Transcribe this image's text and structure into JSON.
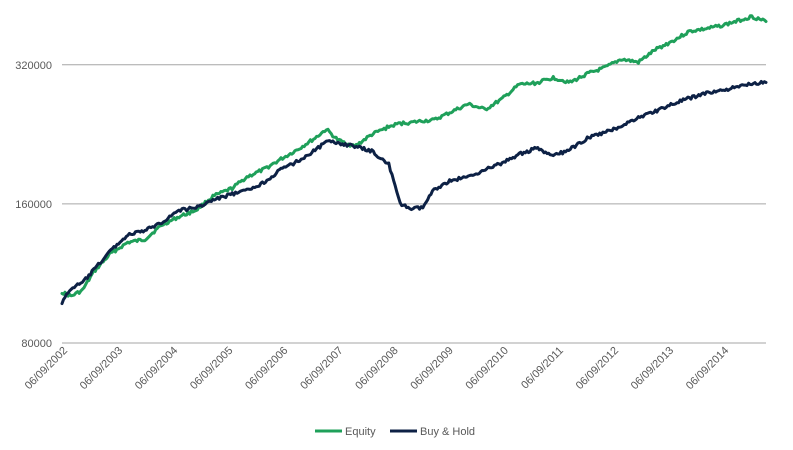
{
  "chart_data": {
    "type": "line",
    "title": "",
    "xlabel": "",
    "ylabel": "",
    "y_scale": "log",
    "ylim": [
      80000,
      400000
    ],
    "y_ticks": [
      80000,
      160000,
      320000
    ],
    "y_tick_labels": [
      "80000",
      "160000",
      "320000"
    ],
    "x_tick_labels": [
      "06/09/2002",
      "06/09/2003",
      "06/09/2004",
      "06/09/2005",
      "06/09/2006",
      "06/09/2007",
      "06/09/2008",
      "06/09/2009",
      "06/09/2010",
      "06/09/2011",
      "06/09/2012",
      "06/09/2013",
      "06/09/2014"
    ],
    "x": [
      2002.44,
      2002.6,
      2002.8,
      2003.0,
      2003.3,
      2003.6,
      2003.9,
      2004.2,
      2004.5,
      2004.8,
      2005.1,
      2005.44,
      2005.7,
      2006.0,
      2006.3,
      2006.6,
      2006.9,
      2007.1,
      2007.3,
      2007.6,
      2007.9,
      2008.2,
      2008.4,
      2008.6,
      2008.8,
      2009.0,
      2009.3,
      2009.6,
      2009.9,
      2010.2,
      2010.5,
      2010.8,
      2011.1,
      2011.4,
      2011.7,
      2012.0,
      2012.3,
      2012.6,
      2012.9,
      2013.2,
      2013.5,
      2013.8,
      2014.1,
      2014.4,
      2014.6,
      2014.85
    ],
    "grid": true,
    "legend_position": "bottom",
    "series": [
      {
        "name": "Equity",
        "color": "#1FA05A",
        "values": [
          103000,
          101000,
          104000,
          114000,
          125000,
          132000,
          134000,
          144000,
          150000,
          155000,
          166000,
          173000,
          183000,
          190000,
          200000,
          210000,
          222000,
          232000,
          220000,
          213000,
          226000,
          235000,
          239000,
          240000,
          242000,
          243000,
          253000,
          263000,
          256000,
          270000,
          290000,
          292000,
          300000,
          293000,
          306000,
          315000,
          329000,
          324000,
          345000,
          360000,
          378000,
          383000,
          390000,
          400000,
          407000,
          397000
        ]
      },
      {
        "name": "Buy & Hold",
        "color": "#0D2145",
        "values": [
          98000,
          105000,
          108000,
          115000,
          127000,
          137000,
          140000,
          146000,
          155000,
          157000,
          163000,
          168000,
          171000,
          178000,
          190000,
          198000,
          209000,
          218000,
          217000,
          213000,
          208000,
          195000,
          160000,
          156000,
          157000,
          172000,
          180000,
          183000,
          190000,
          196000,
          205000,
          211000,
          203000,
          210000,
          222000,
          228000,
          236000,
          246000,
          254000,
          263000,
          271000,
          278000,
          282000,
          287000,
          292000,
          293000
        ]
      }
    ]
  }
}
